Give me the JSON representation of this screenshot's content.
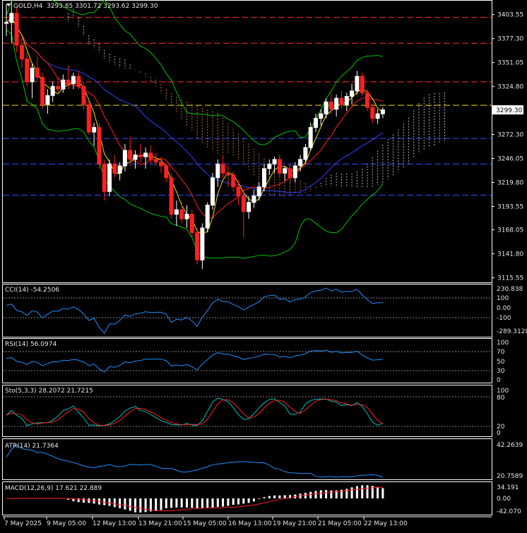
{
  "main": {
    "symbol": "GOLD,H4",
    "ohlc": "3293.85 3301.72 3293.62 3299.30",
    "price_label": "3299.30",
    "y_ticks": [
      "3403.55",
      "3377.30",
      "3351.05",
      "3324.80",
      "3299.30",
      "3272.30",
      "3246.05",
      "3219.80",
      "3193.55",
      "3168.05",
      "3141.80",
      "3115.55"
    ],
    "y_tick_values": [
      3403.55,
      3377.3,
      3351.05,
      3324.8,
      3299.3,
      3272.3,
      3246.05,
      3219.8,
      3193.55,
      3168.05,
      3141.8,
      3115.55
    ],
    "hlines": [
      {
        "value": 3400.5,
        "color": "#ff3030",
        "style": "dash"
      },
      {
        "value": 3372.2,
        "color": "#ff3030",
        "style": "dash"
      },
      {
        "value": 3330.0,
        "color": "#ff3030",
        "style": "dash"
      },
      {
        "value": 3304.3,
        "color": "#e8e000",
        "style": "dash"
      },
      {
        "value": 3268.0,
        "color": "#3050ff",
        "style": "dash"
      },
      {
        "value": 3240.0,
        "color": "#3050ff",
        "style": "dash"
      },
      {
        "value": 3206.0,
        "color": "#3050ff",
        "style": "dash"
      }
    ]
  },
  "x_axis": {
    "labels": [
      "7 May 2025",
      "9 May 05:00",
      "12 May 13:00",
      "13 May 21:00",
      "15 May 05:00",
      "16 May 13:00",
      "19 May 21:00",
      "21 May 05:00",
      "22 May 13:00"
    ]
  },
  "panels": {
    "cci": {
      "title": "CCI(14) -54.2506",
      "ticks": [
        "230.838",
        "100",
        "0.00",
        "-100",
        "-289.3128"
      ]
    },
    "rsi": {
      "title": "RSI(14) 56.0974",
      "ticks": [
        "100",
        "70",
        "50",
        "30",
        "0"
      ]
    },
    "sto": {
      "title": "Sto(5,3,3) 28.2072 21.7215",
      "ticks": [
        "100",
        "80",
        "20",
        "0"
      ]
    },
    "atr": {
      "title": "ATR(14) 21.7364",
      "ticks": [
        "42.2639",
        "20.7589"
      ]
    },
    "macd": {
      "title": "MACD(12,26,9) 17.621 22.889",
      "ticks": [
        "34.191",
        "0.00",
        "-42.070"
      ]
    }
  },
  "colors": {
    "bull": "#ffffff",
    "bear": "#ff2020",
    "axis": "#ffffff",
    "ichimoku_kijun": "#ff2020",
    "ichimoku_tenkan": "#3040ff",
    "bollinger": "#00c000",
    "ma_fast": "#e8e000",
    "cci_line": "#1e90ff",
    "rsi_line": "#1e90ff",
    "sto_main": "#00bfbf",
    "sto_signal": "#ff2020",
    "atr_line": "#1e90ff",
    "macd_hist": "#ffffff",
    "macd_signal": "#ff2020"
  },
  "chart_data": {
    "type": "candlestick",
    "title": "GOLD,H4",
    "ylim": [
      3112,
      3418
    ],
    "candles": [
      [
        3394,
        3415,
        3380,
        3395
      ],
      [
        3395,
        3418,
        3372,
        3405
      ],
      [
        3405,
        3412,
        3362,
        3370
      ],
      [
        3370,
        3378,
        3345,
        3355
      ],
      [
        3355,
        3362,
        3325,
        3330
      ],
      [
        3330,
        3350,
        3312,
        3345
      ],
      [
        3345,
        3358,
        3330,
        3335
      ],
      [
        3335,
        3340,
        3300,
        3305
      ],
      [
        3305,
        3322,
        3295,
        3315
      ],
      [
        3315,
        3330,
        3308,
        3325
      ],
      [
        3325,
        3335,
        3318,
        3322
      ],
      [
        3322,
        3338,
        3318,
        3332
      ],
      [
        3332,
        3348,
        3322,
        3328
      ],
      [
        3328,
        3340,
        3322,
        3336
      ],
      [
        3336,
        3342,
        3322,
        3325
      ],
      [
        3325,
        3330,
        3300,
        3305
      ],
      [
        3305,
        3310,
        3272,
        3275
      ],
      [
        3275,
        3285,
        3260,
        3280
      ],
      [
        3280,
        3285,
        3235,
        3240
      ],
      [
        3240,
        3245,
        3200,
        3210
      ],
      [
        3210,
        3245,
        3205,
        3240
      ],
      [
        3240,
        3250,
        3225,
        3230
      ],
      [
        3230,
        3242,
        3222,
        3238
      ],
      [
        3238,
        3262,
        3232,
        3255
      ],
      [
        3255,
        3270,
        3238,
        3245
      ],
      [
        3245,
        3255,
        3235,
        3250
      ],
      [
        3250,
        3262,
        3242,
        3248
      ],
      [
        3248,
        3258,
        3235,
        3252
      ],
      [
        3252,
        3260,
        3240,
        3245
      ],
      [
        3245,
        3252,
        3238,
        3242
      ],
      [
        3242,
        3248,
        3230,
        3238
      ],
      [
        3238,
        3242,
        3220,
        3225
      ],
      [
        3225,
        3230,
        3180,
        3185
      ],
      [
        3185,
        3200,
        3172,
        3190
      ],
      [
        3190,
        3198,
        3175,
        3180
      ],
      [
        3180,
        3195,
        3170,
        3185
      ],
      [
        3185,
        3190,
        3160,
        3165
      ],
      [
        3165,
        3170,
        3130,
        3135
      ],
      [
        3135,
        3175,
        3125,
        3170
      ],
      [
        3170,
        3198,
        3165,
        3195
      ],
      [
        3195,
        3230,
        3190,
        3225
      ],
      [
        3225,
        3245,
        3215,
        3240
      ],
      [
        3240,
        3250,
        3225,
        3230
      ],
      [
        3230,
        3238,
        3215,
        3228
      ],
      [
        3228,
        3232,
        3210,
        3215
      ],
      [
        3215,
        3222,
        3195,
        3205
      ],
      [
        3205,
        3210,
        3160,
        3188
      ],
      [
        3188,
        3205,
        3180,
        3198
      ],
      [
        3198,
        3212,
        3192,
        3205
      ],
      [
        3205,
        3220,
        3200,
        3215
      ],
      [
        3215,
        3240,
        3210,
        3235
      ],
      [
        3235,
        3245,
        3228,
        3240
      ],
      [
        3240,
        3248,
        3230,
        3245
      ],
      [
        3245,
        3250,
        3225,
        3230
      ],
      [
        3230,
        3238,
        3222,
        3235
      ],
      [
        3235,
        3240,
        3220,
        3225
      ],
      [
        3225,
        3242,
        3220,
        3238
      ],
      [
        3238,
        3250,
        3232,
        3245
      ],
      [
        3245,
        3262,
        3240,
        3258
      ],
      [
        3258,
        3285,
        3255,
        3280
      ],
      [
        3280,
        3295,
        3275,
        3290
      ],
      [
        3290,
        3300,
        3282,
        3295
      ],
      [
        3295,
        3312,
        3290,
        3308
      ],
      [
        3308,
        3318,
        3295,
        3300
      ],
      [
        3300,
        3316,
        3292,
        3312
      ],
      [
        3312,
        3320,
        3300,
        3305
      ],
      [
        3305,
        3318,
        3298,
        3314
      ],
      [
        3314,
        3328,
        3305,
        3320
      ],
      [
        3320,
        3342,
        3316,
        3336
      ],
      [
        3336,
        3340,
        3315,
        3318
      ],
      [
        3318,
        3322,
        3298,
        3302
      ],
      [
        3302,
        3306,
        3285,
        3290
      ],
      [
        3290,
        3300,
        3284,
        3295
      ],
      [
        3295,
        3302,
        3290,
        3299.3
      ]
    ]
  }
}
